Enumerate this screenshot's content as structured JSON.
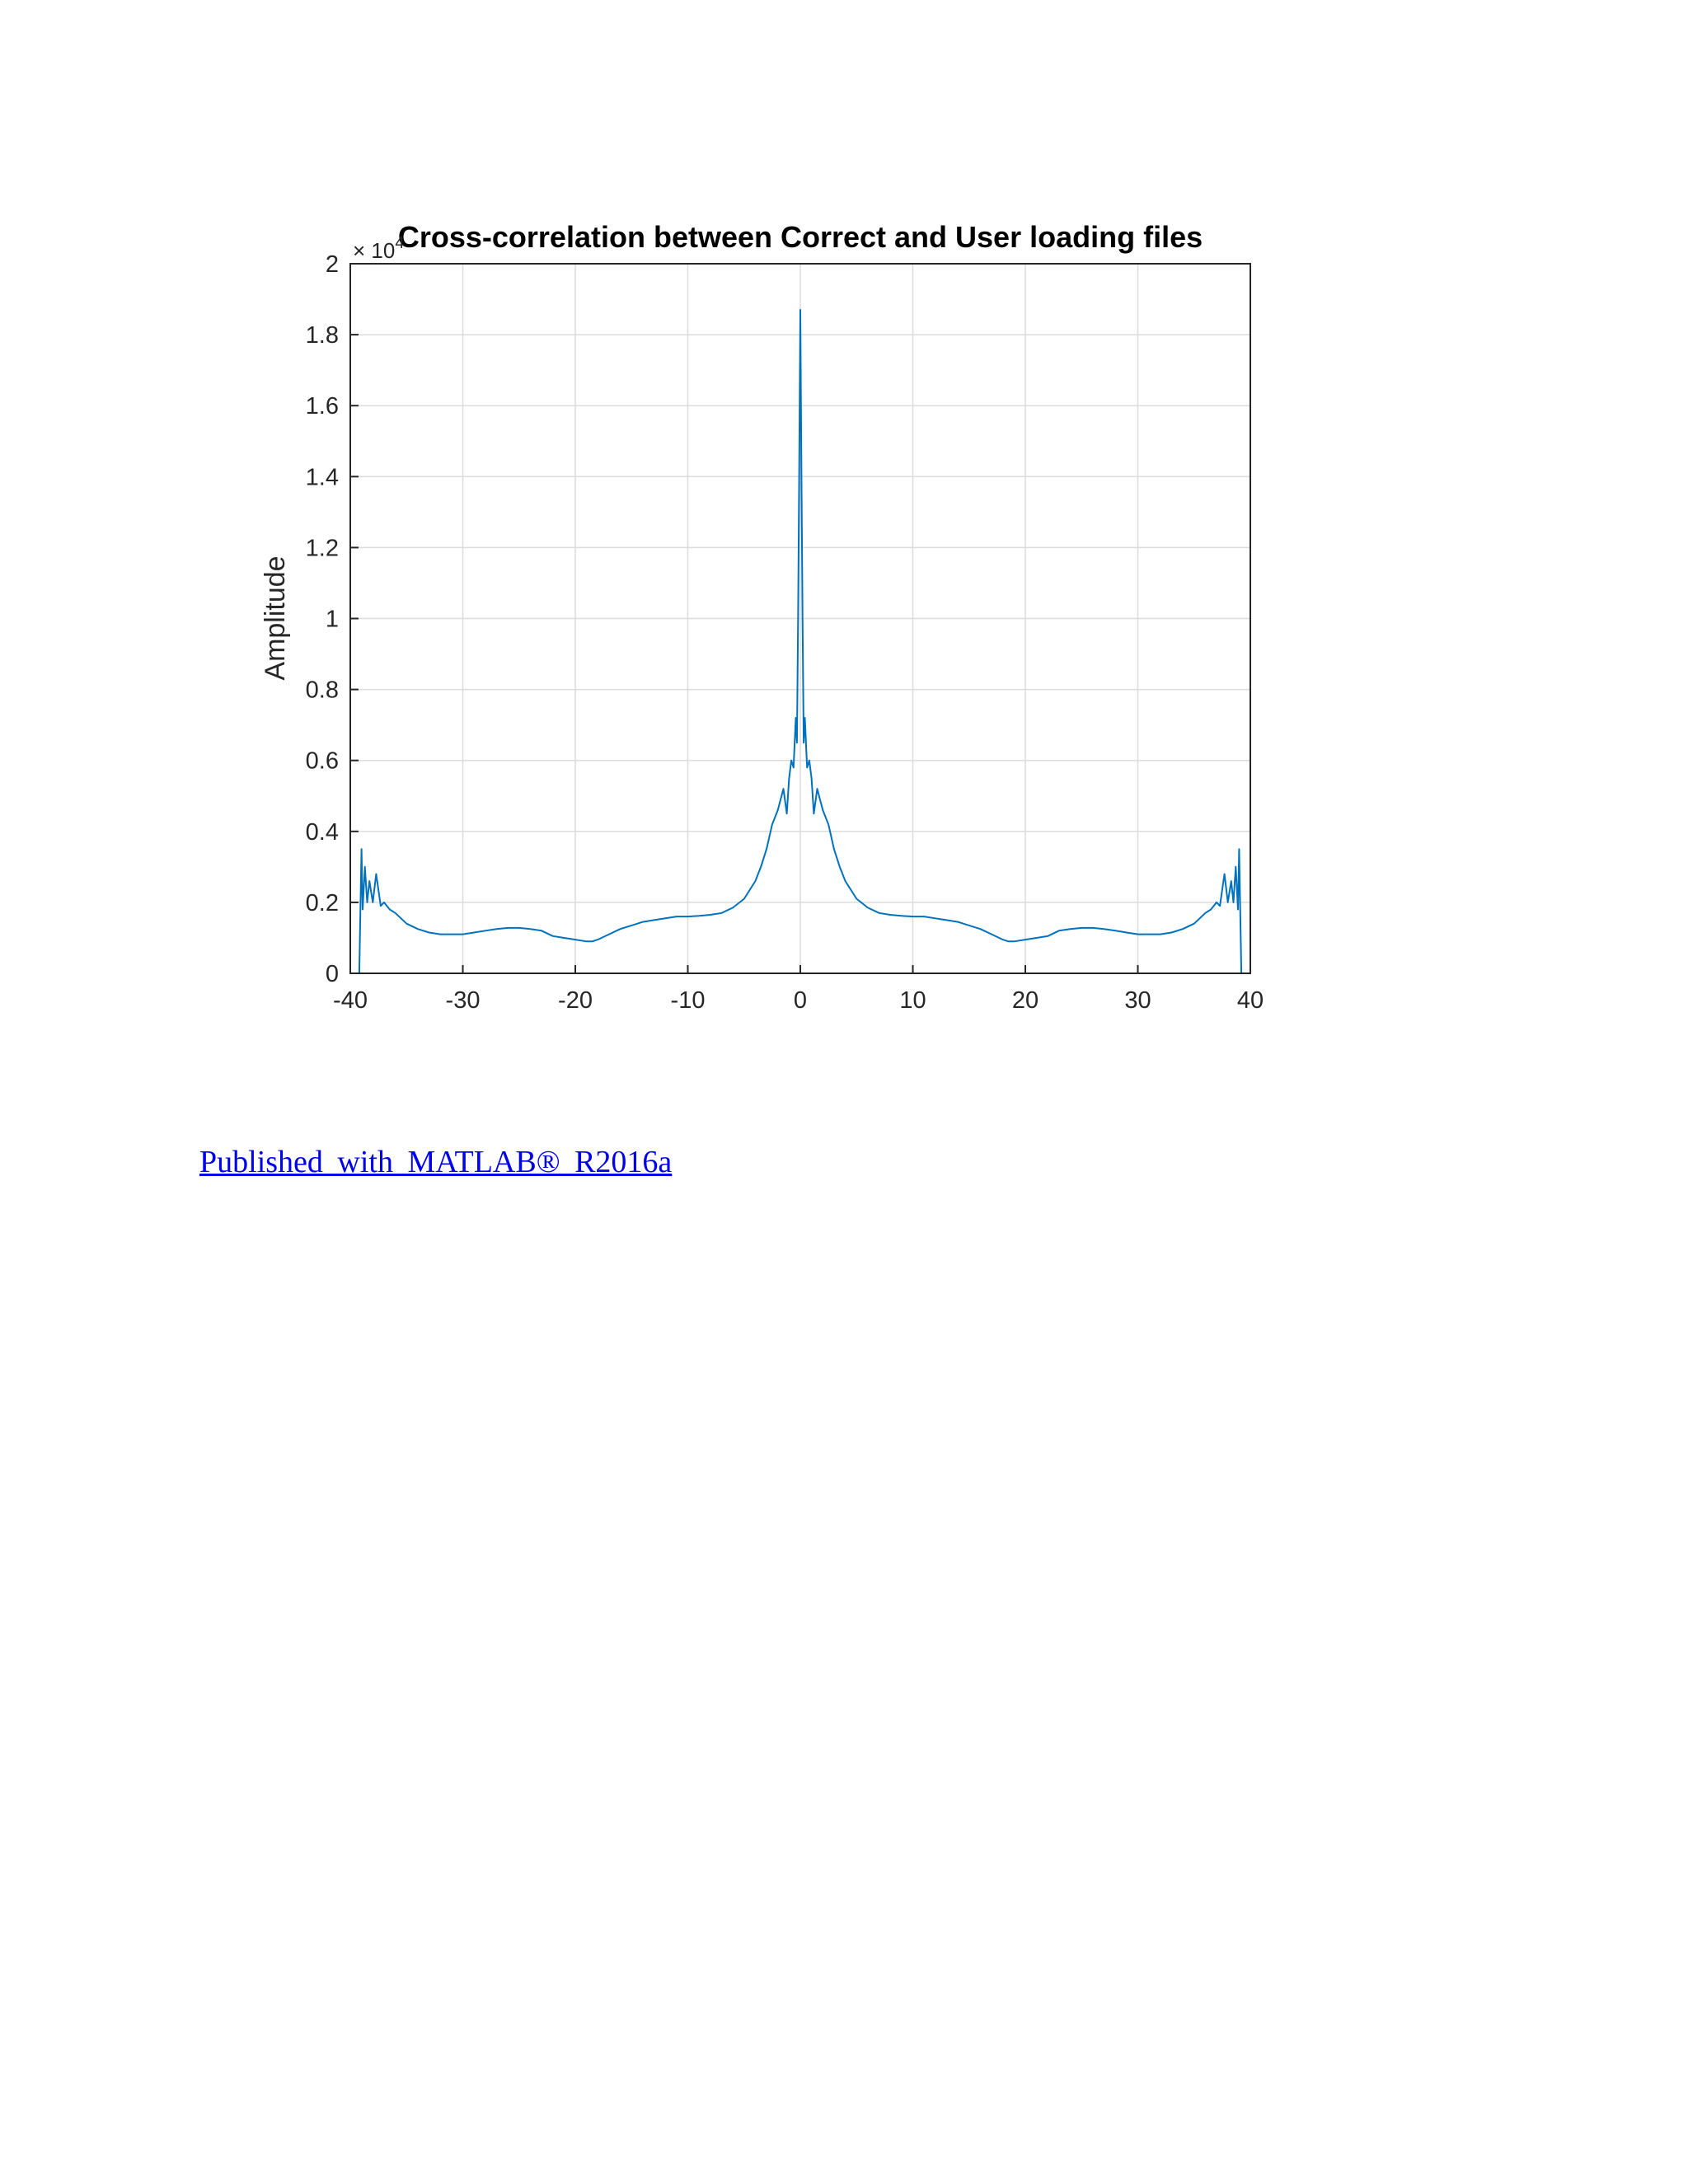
{
  "chart_data": {
    "type": "line",
    "title": "Cross-correlation between Correct and User  loading files",
    "xlabel": "",
    "ylabel": "Amplitude",
    "y_exponent": "× 10",
    "y_exponent_power": "4",
    "xlim": [
      -40,
      40
    ],
    "ylim": [
      0,
      2
    ],
    "xticks": [
      -40,
      -30,
      -20,
      -10,
      0,
      10,
      20,
      30,
      40
    ],
    "yticks": [
      0,
      0.2,
      0.4,
      0.6,
      0.8,
      1,
      1.2,
      1.4,
      1.6,
      1.8,
      2
    ],
    "xtick_labels": [
      "-40",
      "-30",
      "-20",
      "-10",
      "0",
      "10",
      "20",
      "30",
      "40"
    ],
    "ytick_labels": [
      "0",
      "0.2",
      "0.4",
      "0.6",
      "0.8",
      "1",
      "1.2",
      "1.4",
      "1.6",
      "1.8",
      "2"
    ],
    "grid": true,
    "line_color": "#0072bd",
    "series": [
      {
        "x": [
          -39.2,
          -39.0,
          -38.9,
          -38.7,
          -38.5,
          -38.3,
          -38.0,
          -37.7,
          -37.3,
          -37.0,
          -36.5,
          -36.0,
          -35.0,
          -34.0,
          -33.0,
          -32.0,
          -31.0,
          -30.0,
          -29.0,
          -28.0,
          -27.0,
          -26.0,
          -25.0,
          -24.0,
          -23.0,
          -22.0,
          -21.0,
          -20.0,
          -19.0,
          -18.5,
          -18.0,
          -17.0,
          -16.0,
          -15.0,
          -14.0,
          -13.0,
          -12.0,
          -11.0,
          -10.0,
          -9.0,
          -8.0,
          -7.0,
          -6.0,
          -5.0,
          -4.0,
          -3.5,
          -3.0,
          -2.5,
          -2.0,
          -1.5,
          -1.2,
          -1.0,
          -0.8,
          -0.6,
          -0.4,
          -0.3,
          -0.2,
          -0.1,
          0.0,
          0.1,
          0.2,
          0.3,
          0.4,
          0.6,
          0.8,
          1.0,
          1.2,
          1.5,
          2.0,
          2.5,
          3.0,
          3.5,
          4.0,
          5.0,
          6.0,
          7.0,
          8.0,
          9.0,
          10.0,
          11.0,
          12.0,
          13.0,
          14.0,
          15.0,
          16.0,
          17.0,
          18.0,
          18.5,
          19.0,
          20.0,
          21.0,
          22.0,
          23.0,
          24.0,
          25.0,
          26.0,
          27.0,
          28.0,
          29.0,
          30.0,
          31.0,
          32.0,
          33.0,
          34.0,
          35.0,
          36.0,
          36.5,
          37.0,
          37.3,
          37.7,
          38.0,
          38.3,
          38.5,
          38.7,
          38.9,
          39.0,
          39.2
        ],
        "y": [
          0.0,
          0.35,
          0.18,
          0.3,
          0.2,
          0.26,
          0.2,
          0.28,
          0.19,
          0.2,
          0.18,
          0.17,
          0.14,
          0.125,
          0.115,
          0.11,
          0.11,
          0.11,
          0.115,
          0.12,
          0.125,
          0.128,
          0.128,
          0.125,
          0.12,
          0.105,
          0.1,
          0.095,
          0.09,
          0.09,
          0.095,
          0.11,
          0.125,
          0.135,
          0.145,
          0.15,
          0.155,
          0.16,
          0.16,
          0.162,
          0.165,
          0.17,
          0.185,
          0.21,
          0.26,
          0.3,
          0.35,
          0.42,
          0.46,
          0.52,
          0.45,
          0.55,
          0.6,
          0.58,
          0.72,
          0.65,
          1.0,
          1.4,
          1.87,
          1.4,
          1.0,
          0.65,
          0.72,
          0.58,
          0.6,
          0.55,
          0.45,
          0.52,
          0.46,
          0.42,
          0.35,
          0.3,
          0.26,
          0.21,
          0.185,
          0.17,
          0.165,
          0.162,
          0.16,
          0.16,
          0.155,
          0.15,
          0.145,
          0.135,
          0.125,
          0.11,
          0.095,
          0.09,
          0.09,
          0.095,
          0.1,
          0.105,
          0.12,
          0.125,
          0.128,
          0.128,
          0.125,
          0.12,
          0.115,
          0.11,
          0.11,
          0.11,
          0.115,
          0.125,
          0.14,
          0.17,
          0.18,
          0.2,
          0.19,
          0.28,
          0.2,
          0.26,
          0.2,
          0.3,
          0.18,
          0.35,
          0.0
        ]
      }
    ]
  },
  "footer": {
    "published_text": "Published with MATLAB® R2016a"
  }
}
